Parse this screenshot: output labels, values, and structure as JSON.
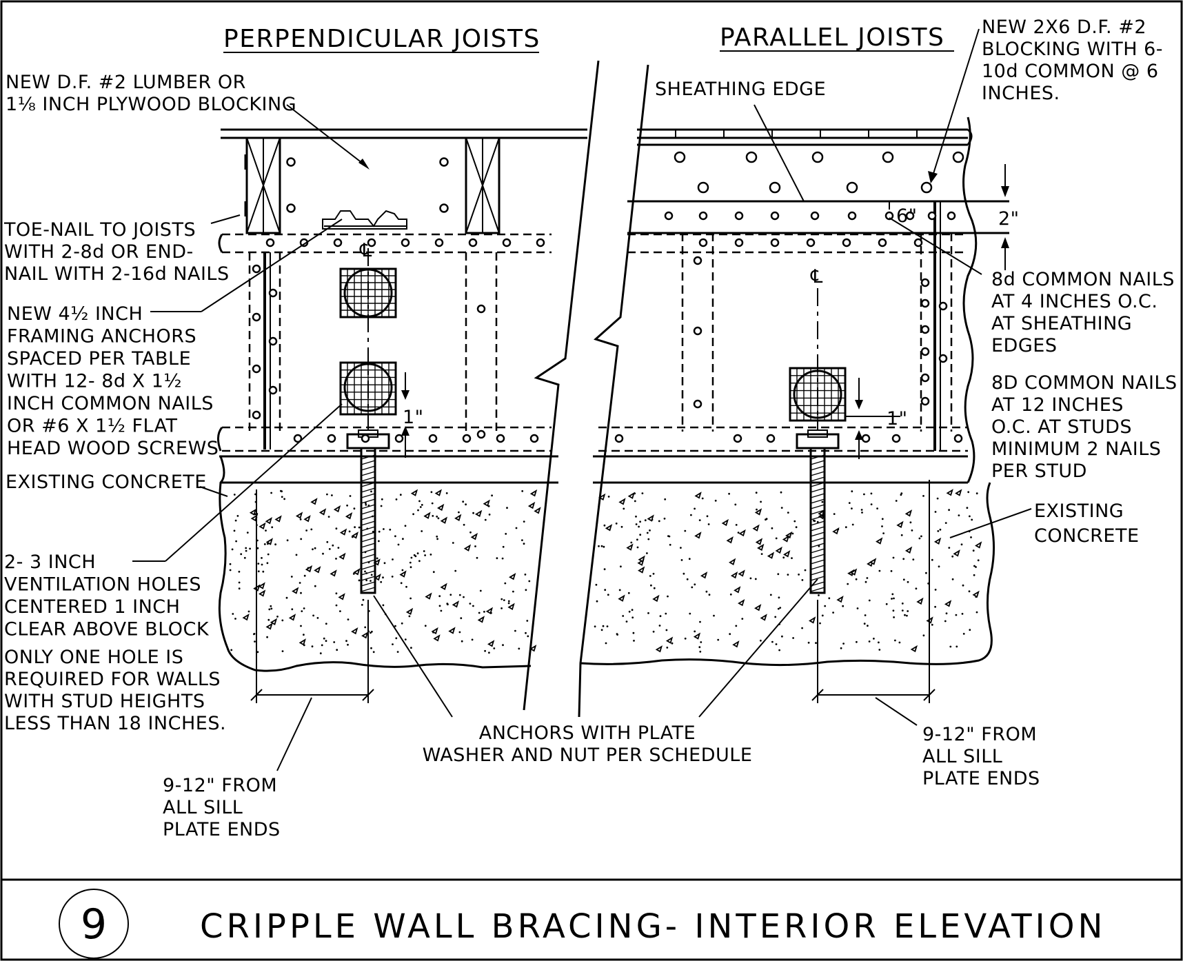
{
  "headers": {
    "perpendicular": "PERPENDICULAR JOISTS",
    "parallel": "PARALLEL JOISTS"
  },
  "notes": {
    "blocking": [
      "NEW D.F. #2 LUMBER OR",
      "1⅛ INCH PLYWOOD BLOCKING"
    ],
    "toe_nail": [
      "TOE-NAIL TO JOISTS",
      "WITH 2-8d OR END-",
      "NAIL WITH 2-16d NAILS"
    ],
    "framing_anchors": [
      "NEW 4½ INCH",
      "FRAMING ANCHORS",
      "SPACED PER TABLE",
      "WITH 12- 8d X 1½",
      "INCH COMMON NAILS",
      "OR #6 X 1½ FLAT",
      "HEAD WOOD SCREWS"
    ],
    "existing_concrete_left": "EXISTING CONCRETE",
    "vent_holes": [
      "2- 3 INCH",
      "VENTILATION HOLES",
      "CENTERED 1 INCH",
      "CLEAR ABOVE BLOCK"
    ],
    "one_hole": [
      "ONLY ONE HOLE IS",
      "REQUIRED FOR WALLS",
      "WITH STUD HEIGHTS",
      "LESS THAN 18 INCHES."
    ],
    "sill_ends_left": [
      "9-12\" FROM",
      "ALL SILL",
      "PLATE ENDS"
    ],
    "anchors": [
      "ANCHORS WITH PLATE",
      "WASHER AND NUT PER SCHEDULE"
    ],
    "sill_ends_right": [
      "9-12\" FROM",
      "ALL SILL",
      "PLATE ENDS"
    ],
    "sheathing_edge": "SHEATHING EDGE",
    "new_blocking": [
      "NEW 2X6 D.F. #2",
      "BLOCKING WITH 6-",
      "10d COMMON @ 6",
      "INCHES."
    ],
    "nails_4in": [
      "8d COMMON NAILS",
      "AT 4 INCHES O.C.",
      "AT SHEATHING",
      "EDGES"
    ],
    "nails_12in": [
      "8D COMMON NAILS",
      "AT 12 INCHES",
      "O.C. AT STUDS",
      "MINIMUM 2 NAILS",
      "PER STUD"
    ],
    "existing_concrete_right": [
      "EXISTING",
      "CONCRETE"
    ]
  },
  "dimensions": {
    "centerline": "℄",
    "two_inch": "2\"",
    "six_inch": "6\"",
    "one_inch": "1\""
  },
  "title_block": {
    "detail_number": "9",
    "title": "CRIPPLE WALL BRACING- INTERIOR ELEVATION"
  }
}
